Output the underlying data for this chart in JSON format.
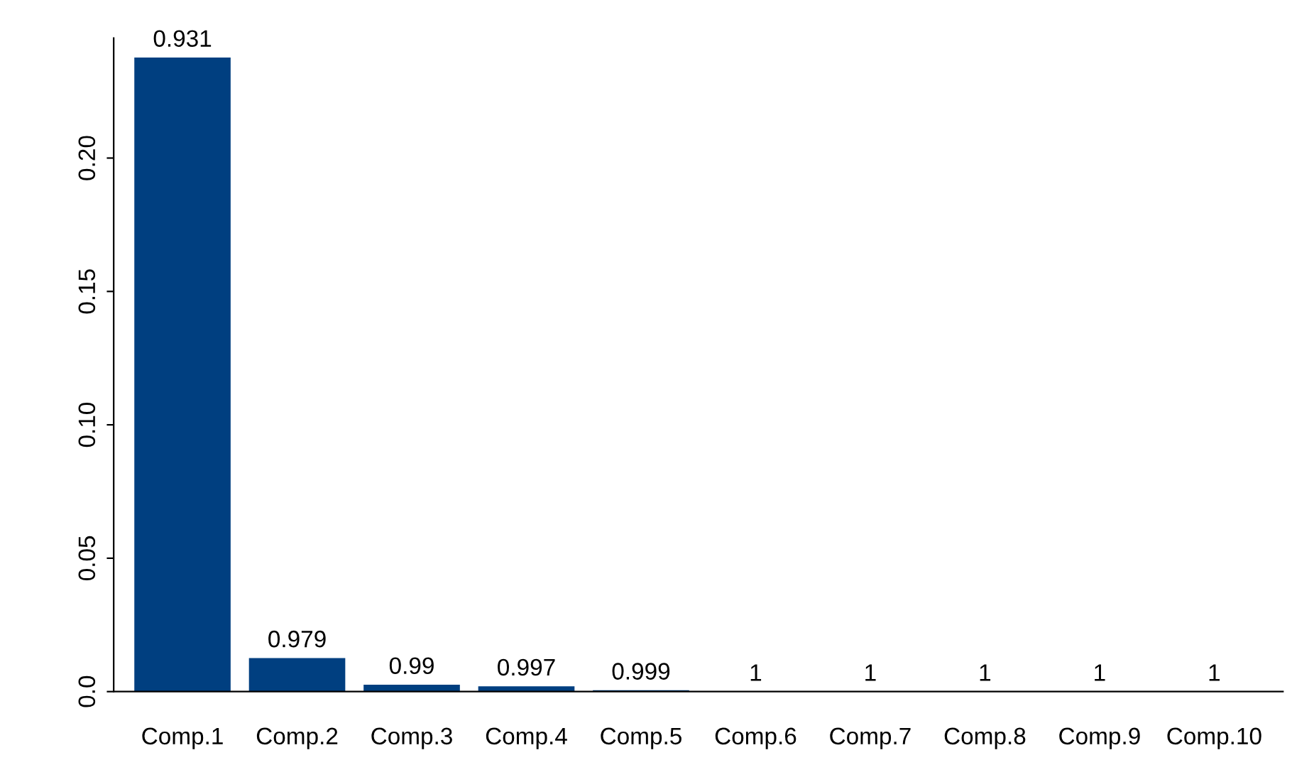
{
  "chart_data": {
    "type": "bar",
    "categories": [
      "Comp.1",
      "Comp.2",
      "Comp.3",
      "Comp.4",
      "Comp.5",
      "Comp.6",
      "Comp.7",
      "Comp.8",
      "Comp.9",
      "Comp.10"
    ],
    "values": [
      0.2377,
      0.0126,
      0.0026,
      0.002,
      0.0005,
      0,
      0,
      0,
      0,
      0
    ],
    "annotations": [
      {
        "text": "0.931",
        "x": "Comp.1",
        "y": 0.2377
      },
      {
        "text": "0.979",
        "x": "Comp.2",
        "y": 0.0126
      },
      {
        "text": "0.99",
        "x": "Comp.3",
        "y": 0.0026
      },
      {
        "text": "0.997",
        "x": "Comp.4",
        "y": 0.002
      },
      {
        "text": "0.999",
        "x": "Comp.5",
        "y": 0.0005
      },
      {
        "text": "1",
        "x": "Comp.6",
        "y": 0
      },
      {
        "text": "1",
        "x": "Comp.7",
        "y": 0
      },
      {
        "text": "1",
        "x": "Comp.8",
        "y": 0
      },
      {
        "text": "1",
        "x": "Comp.9",
        "y": 0
      },
      {
        "text": "1",
        "x": "Comp.10",
        "y": 0
      }
    ],
    "color": "#003f80",
    "ylim": [
      0,
      0.245
    ],
    "yticks": [
      {
        "value": 0,
        "label": "0.0"
      },
      {
        "value": 0.05,
        "label": "0.05"
      },
      {
        "value": 0.1,
        "label": "0.10"
      },
      {
        "value": 0.15,
        "label": "0.15"
      },
      {
        "value": 0.2,
        "label": "0.20"
      }
    ],
    "grid": false
  }
}
